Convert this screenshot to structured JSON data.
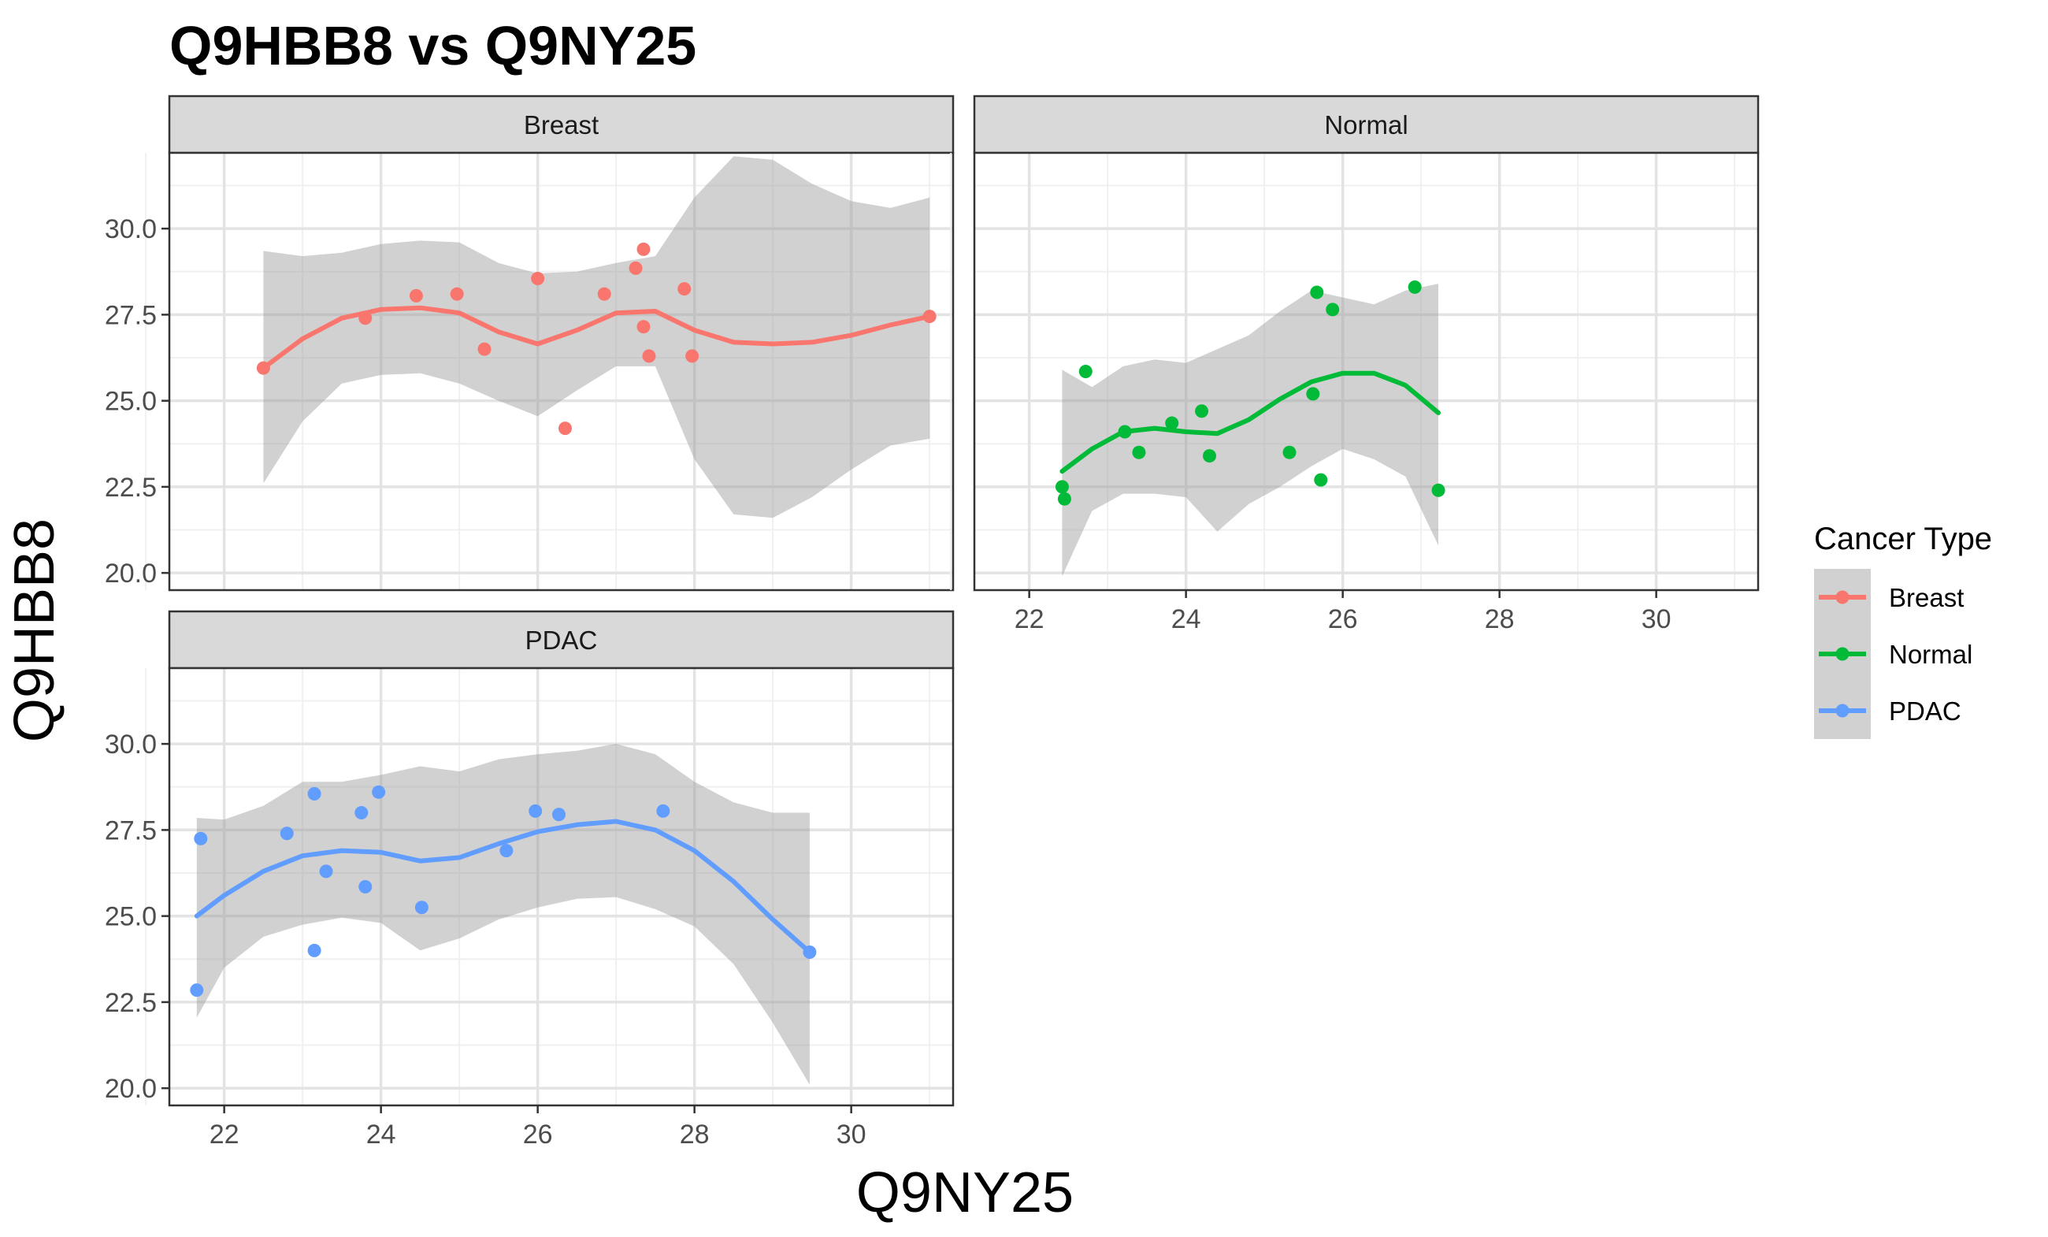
{
  "chart_data": {
    "type": "scatter",
    "title": "Q9HBB8 vs Q9NY25",
    "xlabel": "Q9NY25",
    "ylabel": "Q9HBB8",
    "xlim": [
      21.3,
      31.3
    ],
    "ylim": [
      19.5,
      32.2
    ],
    "x_ticks": [
      22,
      24,
      26,
      28,
      30
    ],
    "y_ticks": [
      20,
      22.5,
      25,
      27.5,
      30
    ],
    "x_tick_labels": [
      "22",
      "24",
      "26",
      "28",
      "30"
    ],
    "y_tick_labels": [
      "20.0",
      "22.5",
      "25.0",
      "27.5",
      "30.0"
    ],
    "grid": true,
    "legend": {
      "title": "Cancer Type",
      "position": "right",
      "entries": [
        "Breast",
        "Normal",
        "PDAC"
      ]
    },
    "colors": {
      "Breast": "#F8766D",
      "Normal": "#00BA38",
      "PDAC": "#619CFF",
      "ribbon": "#999999",
      "strip": "#d9d9d9"
    },
    "series": [
      {
        "name": "Breast",
        "points": [
          [
            22.5,
            25.95
          ],
          [
            23.8,
            27.4
          ],
          [
            24.45,
            28.05
          ],
          [
            24.97,
            28.1
          ],
          [
            25.32,
            26.5
          ],
          [
            26.0,
            28.55
          ],
          [
            26.35,
            24.2
          ],
          [
            26.85,
            28.1
          ],
          [
            27.25,
            28.85
          ],
          [
            27.35,
            29.4
          ],
          [
            27.35,
            27.15
          ],
          [
            27.42,
            26.3
          ],
          [
            27.87,
            28.25
          ],
          [
            27.97,
            26.3
          ],
          [
            31.0,
            27.45
          ]
        ],
        "smooth": [
          [
            22.5,
            25.95
          ],
          [
            23.0,
            26.8
          ],
          [
            23.5,
            27.4
          ],
          [
            24.0,
            27.65
          ],
          [
            24.5,
            27.7
          ],
          [
            25.0,
            27.55
          ],
          [
            25.5,
            27.0
          ],
          [
            26.0,
            26.65
          ],
          [
            26.5,
            27.05
          ],
          [
            27.0,
            27.55
          ],
          [
            27.5,
            27.6
          ],
          [
            28.0,
            27.05
          ],
          [
            28.5,
            26.7
          ],
          [
            29.0,
            26.65
          ],
          [
            29.5,
            26.7
          ],
          [
            30.0,
            26.9
          ],
          [
            30.5,
            27.2
          ],
          [
            31.0,
            27.45
          ]
        ],
        "ribbon_upper": [
          [
            22.5,
            29.35
          ],
          [
            23.0,
            29.2
          ],
          [
            23.5,
            29.3
          ],
          [
            24.0,
            29.55
          ],
          [
            24.5,
            29.65
          ],
          [
            25.0,
            29.6
          ],
          [
            25.5,
            29.0
          ],
          [
            26.0,
            28.7
          ],
          [
            26.5,
            28.75
          ],
          [
            27.0,
            29.0
          ],
          [
            27.5,
            29.2
          ],
          [
            28.0,
            30.9
          ],
          [
            28.5,
            32.1
          ],
          [
            29.0,
            32.0
          ],
          [
            29.5,
            31.3
          ],
          [
            30.0,
            30.8
          ],
          [
            30.5,
            30.6
          ],
          [
            31.0,
            30.9
          ]
        ],
        "ribbon_lower": [
          [
            22.5,
            22.6
          ],
          [
            23.0,
            24.4
          ],
          [
            23.5,
            25.5
          ],
          [
            24.0,
            25.75
          ],
          [
            24.5,
            25.8
          ],
          [
            25.0,
            25.5
          ],
          [
            25.5,
            25.0
          ],
          [
            26.0,
            24.55
          ],
          [
            26.5,
            25.3
          ],
          [
            27.0,
            26.0
          ],
          [
            27.5,
            26.0
          ],
          [
            28.0,
            23.3
          ],
          [
            28.5,
            21.7
          ],
          [
            29.0,
            21.6
          ],
          [
            29.5,
            22.2
          ],
          [
            30.0,
            23.0
          ],
          [
            30.5,
            23.7
          ],
          [
            31.0,
            23.9
          ]
        ]
      },
      {
        "name": "Normal",
        "points": [
          [
            22.42,
            22.5
          ],
          [
            22.45,
            22.15
          ],
          [
            22.72,
            25.85
          ],
          [
            23.22,
            24.1
          ],
          [
            23.4,
            23.5
          ],
          [
            23.82,
            24.35
          ],
          [
            24.2,
            24.7
          ],
          [
            24.3,
            23.4
          ],
          [
            25.32,
            23.5
          ],
          [
            25.62,
            25.2
          ],
          [
            25.67,
            28.15
          ],
          [
            25.72,
            22.7
          ],
          [
            25.87,
            27.65
          ],
          [
            26.92,
            28.3
          ],
          [
            27.22,
            22.4
          ]
        ],
        "smooth": [
          [
            22.42,
            22.95
          ],
          [
            22.8,
            23.6
          ],
          [
            23.2,
            24.1
          ],
          [
            23.6,
            24.2
          ],
          [
            24.0,
            24.1
          ],
          [
            24.4,
            24.05
          ],
          [
            24.8,
            24.45
          ],
          [
            25.2,
            25.05
          ],
          [
            25.6,
            25.55
          ],
          [
            26.0,
            25.8
          ],
          [
            26.4,
            25.8
          ],
          [
            26.8,
            25.45
          ],
          [
            27.22,
            24.65
          ]
        ],
        "ribbon_upper": [
          [
            22.42,
            25.9
          ],
          [
            22.8,
            25.4
          ],
          [
            23.2,
            26.0
          ],
          [
            23.6,
            26.2
          ],
          [
            24.0,
            26.1
          ],
          [
            24.4,
            26.5
          ],
          [
            24.8,
            26.9
          ],
          [
            25.2,
            27.6
          ],
          [
            25.6,
            28.2
          ],
          [
            26.0,
            28.0
          ],
          [
            26.4,
            27.8
          ],
          [
            26.8,
            28.2
          ],
          [
            27.22,
            28.4
          ]
        ],
        "ribbon_lower": [
          [
            22.42,
            19.9
          ],
          [
            22.8,
            21.8
          ],
          [
            23.2,
            22.3
          ],
          [
            23.6,
            22.3
          ],
          [
            24.0,
            22.2
          ],
          [
            24.4,
            21.2
          ],
          [
            24.8,
            22.0
          ],
          [
            25.2,
            22.5
          ],
          [
            25.6,
            23.1
          ],
          [
            26.0,
            23.6
          ],
          [
            26.4,
            23.3
          ],
          [
            26.8,
            22.8
          ],
          [
            27.22,
            20.8
          ]
        ]
      },
      {
        "name": "PDAC",
        "points": [
          [
            21.65,
            22.85
          ],
          [
            21.7,
            27.25
          ],
          [
            22.8,
            27.4
          ],
          [
            23.15,
            28.55
          ],
          [
            23.15,
            24.0
          ],
          [
            23.3,
            26.3
          ],
          [
            23.75,
            28.0
          ],
          [
            23.8,
            25.85
          ],
          [
            23.97,
            28.6
          ],
          [
            24.52,
            25.25
          ],
          [
            25.6,
            26.9
          ],
          [
            25.97,
            28.05
          ],
          [
            26.27,
            27.95
          ],
          [
            27.6,
            28.05
          ],
          [
            29.47,
            23.95
          ]
        ],
        "smooth": [
          [
            21.65,
            25.0
          ],
          [
            22.0,
            25.6
          ],
          [
            22.5,
            26.3
          ],
          [
            23.0,
            26.75
          ],
          [
            23.5,
            26.9
          ],
          [
            24.0,
            26.85
          ],
          [
            24.5,
            26.6
          ],
          [
            25.0,
            26.7
          ],
          [
            25.5,
            27.1
          ],
          [
            26.0,
            27.45
          ],
          [
            26.5,
            27.65
          ],
          [
            27.0,
            27.75
          ],
          [
            27.5,
            27.5
          ],
          [
            28.0,
            26.9
          ],
          [
            28.5,
            26.0
          ],
          [
            29.0,
            24.9
          ],
          [
            29.47,
            23.95
          ]
        ],
        "ribbon_upper": [
          [
            21.65,
            27.85
          ],
          [
            22.0,
            27.8
          ],
          [
            22.5,
            28.2
          ],
          [
            23.0,
            28.9
          ],
          [
            23.5,
            28.9
          ],
          [
            24.0,
            29.1
          ],
          [
            24.5,
            29.35
          ],
          [
            25.0,
            29.2
          ],
          [
            25.5,
            29.55
          ],
          [
            26.0,
            29.7
          ],
          [
            26.5,
            29.8
          ],
          [
            27.0,
            30.0
          ],
          [
            27.5,
            29.7
          ],
          [
            28.0,
            28.9
          ],
          [
            28.5,
            28.3
          ],
          [
            29.0,
            28.0
          ],
          [
            29.47,
            28.0
          ]
        ],
        "ribbon_lower": [
          [
            21.65,
            22.05
          ],
          [
            22.0,
            23.5
          ],
          [
            22.5,
            24.4
          ],
          [
            23.0,
            24.75
          ],
          [
            23.5,
            24.95
          ],
          [
            24.0,
            24.8
          ],
          [
            24.5,
            24.0
          ],
          [
            25.0,
            24.35
          ],
          [
            25.5,
            24.9
          ],
          [
            26.0,
            25.25
          ],
          [
            26.5,
            25.5
          ],
          [
            27.0,
            25.55
          ],
          [
            27.5,
            25.2
          ],
          [
            28.0,
            24.7
          ],
          [
            28.5,
            23.6
          ],
          [
            29.0,
            21.9
          ],
          [
            29.47,
            20.1
          ]
        ]
      }
    ]
  }
}
